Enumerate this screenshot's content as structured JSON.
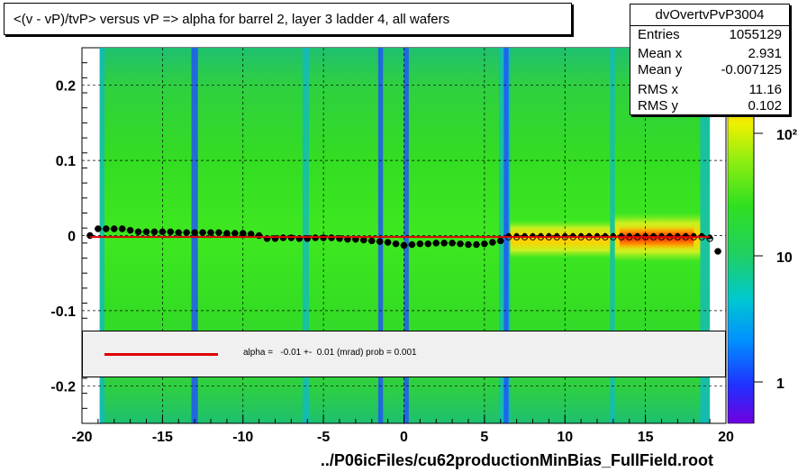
{
  "chart_data": {
    "type": "heatmap",
    "title": "<(v - vP)/tvP> versus   vP => alpha for barrel 2, layer 3 ladder 4, all wafers",
    "xlim": [
      -20,
      20
    ],
    "ylim": [
      -0.25,
      0.25
    ],
    "x_ticks": [
      "-20",
      "-15",
      "-10",
      "-5",
      "0",
      "5",
      "10",
      "15",
      "20"
    ],
    "y_ticks": [
      "0.2",
      "0.1",
      "0",
      "-0.1",
      "-0.2"
    ],
    "z_scale": "log",
    "z_ticks": [
      "1",
      "10",
      "10²"
    ],
    "grid": true,
    "colors": {
      "main_green": "#33dd22",
      "fit_line": "#e00000",
      "hot": "#ff2a00"
    },
    "profile_points": {
      "x": [
        -19.5,
        -19.0,
        -18.5,
        -18.0,
        -17.5,
        -17.0,
        -16.5,
        -16.0,
        -15.5,
        -15.0,
        -14.5,
        -14.0,
        -13.5,
        -13.0,
        -12.5,
        -12.0,
        -11.5,
        -11.0,
        -10.5,
        -10.0,
        -9.5,
        -9.0,
        -8.5,
        -8.0,
        -7.5,
        -7.0,
        -6.5,
        -6.0,
        -5.5,
        -5.0,
        -4.5,
        -4.0,
        -3.5,
        -3.0,
        -2.5,
        -2.0,
        -1.5,
        -1.0,
        -0.5,
        0.0,
        0.5,
        1.0,
        1.5,
        2.0,
        2.5,
        3.0,
        3.5,
        4.0,
        4.5,
        5.0,
        5.5,
        6.0,
        6.5,
        7.0,
        7.5,
        8.0,
        8.5,
        9.0,
        9.5,
        10.0,
        10.5,
        11.0,
        11.5,
        12.0,
        12.5,
        13.0,
        13.5,
        14.0,
        14.5,
        15.0,
        15.5,
        16.0,
        16.5,
        17.0,
        17.5,
        18.0,
        18.5,
        19.0,
        19.5
      ],
      "y": [
        0.0,
        0.009,
        0.009,
        0.009,
        0.009,
        0.007,
        0.005,
        0.005,
        0.005,
        0.005,
        0.005,
        0.004,
        0.004,
        0.004,
        0.004,
        0.004,
        0.004,
        0.003,
        0.003,
        0.003,
        0.002,
        0.0,
        -0.004,
        -0.004,
        -0.003,
        -0.003,
        -0.004,
        -0.004,
        -0.003,
        -0.003,
        -0.003,
        -0.004,
        -0.005,
        -0.005,
        -0.006,
        -0.007,
        -0.008,
        -0.009,
        -0.011,
        -0.013,
        -0.012,
        -0.011,
        -0.011,
        -0.01,
        -0.01,
        -0.01,
        -0.011,
        -0.012,
        -0.012,
        -0.011,
        -0.009,
        -0.007,
        -0.002,
        -0.002,
        -0.002,
        -0.002,
        -0.002,
        -0.002,
        -0.002,
        -0.002,
        -0.002,
        -0.002,
        -0.002,
        -0.002,
        -0.002,
        -0.002,
        -0.002,
        -0.002,
        -0.002,
        -0.002,
        -0.002,
        -0.002,
        -0.002,
        -0.002,
        -0.002,
        -0.002,
        -0.002,
        -0.004,
        -0.021
      ]
    },
    "fit": {
      "x": [
        -19.5,
        19.0
      ],
      "y": [
        -0.002,
        -0.002
      ]
    }
  },
  "stats": {
    "name": "dvOvertvPvP3004",
    "rows": [
      {
        "key": "Entries",
        "value": "1055129"
      },
      {
        "key": "Mean x",
        "value": "2.931"
      },
      {
        "key": "Mean y",
        "value": "-0.007125"
      },
      {
        "key": "RMS x",
        "value": "11.16"
      },
      {
        "key": "RMS y",
        "value": "0.102"
      }
    ]
  },
  "legend": {
    "text": "alpha =   -0.01 +-  0.01 (mrad) prob = 0.001"
  },
  "footer": "../P06icFiles/cu62productionMinBias_FullField.root"
}
